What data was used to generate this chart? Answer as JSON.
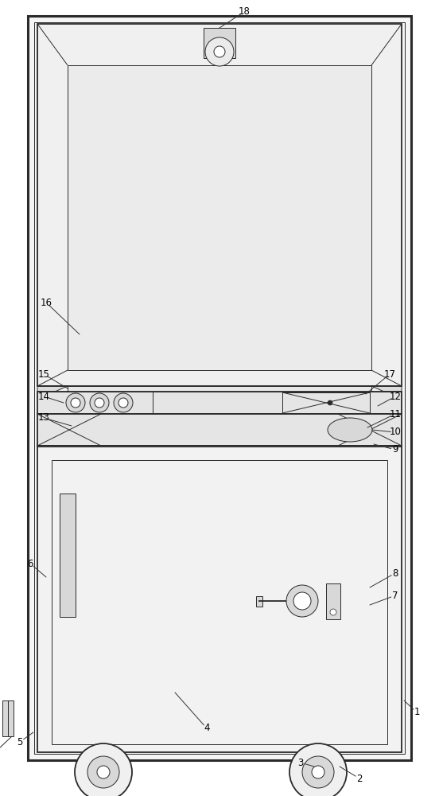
{
  "bg": "#ffffff",
  "lc": "#2a2a2a",
  "fc_outer": "#f5f5f5",
  "fc_display": "#f0f0f0",
  "fc_screen": "#ebebeb",
  "fc_mid": "#e5e5e5",
  "fc_trap": "#dcdcdc",
  "fc_cabinet": "#f2f2f2",
  "fc_gray": "#d8d8d8",
  "lw_outer": 2.2,
  "lw_main": 1.3,
  "lw_thin": 0.7,
  "lw_label": 0.7,
  "fig_w": 5.52,
  "fig_h": 10.0
}
